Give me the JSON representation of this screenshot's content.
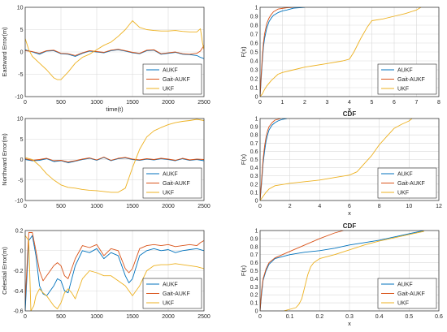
{
  "figure": {
    "colors": {
      "AUKF": "#0072BD",
      "Gait-AUKF": "#D95319",
      "UKF": "#EDB120",
      "grid": "#d9d9d9",
      "axis": "#262626"
    }
  },
  "chart_data": [
    {
      "type": "line",
      "title": "",
      "xlabel": "time(t)",
      "ylabel": "Eastward Error(m)",
      "xlim": [
        0,
        2500
      ],
      "ylim": [
        -10,
        10
      ],
      "xticks": [
        0,
        500,
        1000,
        1500,
        2000,
        2500
      ],
      "yticks": [
        -10,
        -5,
        0,
        5,
        10
      ],
      "grid": true,
      "legend": "bottom-right",
      "series": [
        {
          "name": "AUKF",
          "x": [
            0,
            100,
            200,
            300,
            400,
            500,
            600,
            700,
            800,
            900,
            1000,
            1100,
            1200,
            1300,
            1400,
            1500,
            1600,
            1700,
            1800,
            1900,
            2000,
            2100,
            2200,
            2300,
            2400,
            2450,
            2500
          ],
          "y": [
            0.5,
            0,
            -0.5,
            0.2,
            0.3,
            -0.4,
            -0.5,
            -1,
            -0.3,
            0.2,
            0,
            -0.2,
            0.3,
            0.5,
            0.2,
            -0.2,
            -0.4,
            0.3,
            0.4,
            -0.5,
            -0.3,
            -0.1,
            -0.5,
            -0.6,
            -0.8,
            -1.2,
            -1.5
          ]
        },
        {
          "name": "Gait-AUKF",
          "x": [
            0,
            100,
            200,
            300,
            400,
            500,
            600,
            700,
            800,
            900,
            1000,
            1100,
            1200,
            1300,
            1400,
            1500,
            1600,
            1700,
            1800,
            1900,
            2000,
            2100,
            2200,
            2300,
            2400,
            2450,
            2500
          ],
          "y": [
            0.3,
            0.1,
            -0.3,
            0.3,
            0.4,
            -0.3,
            -0.4,
            -0.8,
            -0.2,
            0.3,
            0.1,
            -0.1,
            0.4,
            0.6,
            0.3,
            -0.1,
            -0.3,
            0.4,
            0.5,
            -0.4,
            -0.2,
            0,
            -0.4,
            -0.5,
            -0.3,
            0.2,
            1.5
          ]
        },
        {
          "name": "UKF",
          "x": [
            0,
            50,
            100,
            200,
            300,
            400,
            450,
            500,
            600,
            700,
            800,
            900,
            1000,
            1100,
            1200,
            1300,
            1400,
            1500,
            1600,
            1700,
            1800,
            1900,
            2000,
            2100,
            2200,
            2300,
            2400,
            2450,
            2480,
            2500
          ],
          "y": [
            3,
            0.5,
            -1,
            -2.5,
            -4,
            -5.8,
            -6.2,
            -6.2,
            -4.5,
            -2.5,
            -1.2,
            -0.5,
            0.5,
            1.5,
            2.2,
            3.5,
            5,
            7,
            5.5,
            5,
            4.8,
            4.7,
            4.7,
            4.8,
            4.6,
            4.5,
            4.5,
            5.2,
            2,
            0.5
          ]
        }
      ]
    },
    {
      "type": "line",
      "title": "",
      "xlabel": "x",
      "ylabel": "F(x)",
      "xlim": [
        0,
        8
      ],
      "ylim": [
        0,
        1
      ],
      "xticks": [
        0,
        1,
        2,
        3,
        4,
        5,
        6,
        7,
        8
      ],
      "yticks": [
        0,
        0.1,
        0.2,
        0.3,
        0.4,
        0.5,
        0.6,
        0.7,
        0.8,
        0.9,
        1
      ],
      "grid": true,
      "legend": "bottom-right",
      "series": [
        {
          "name": "AUKF",
          "x": [
            0,
            0.05,
            0.1,
            0.15,
            0.2,
            0.3,
            0.4,
            0.5,
            0.6,
            0.8,
            1,
            1.2,
            1.5,
            2
          ],
          "y": [
            0,
            0.2,
            0.4,
            0.55,
            0.65,
            0.77,
            0.84,
            0.88,
            0.91,
            0.94,
            0.96,
            0.97,
            0.99,
            1
          ]
        },
        {
          "name": "Gait-AUKF",
          "x": [
            0,
            0.05,
            0.1,
            0.15,
            0.2,
            0.3,
            0.4,
            0.5,
            0.6,
            0.8,
            1.2,
            1.5
          ],
          "y": [
            0,
            0.25,
            0.45,
            0.6,
            0.7,
            0.82,
            0.88,
            0.92,
            0.95,
            0.98,
            0.995,
            1
          ]
        },
        {
          "name": "UKF",
          "x": [
            0,
            0.1,
            0.2,
            0.3,
            0.5,
            0.8,
            1,
            1.5,
            2,
            3,
            3.7,
            4,
            4.2,
            4.5,
            4.8,
            5,
            5.5,
            6,
            6.5,
            7,
            7.2
          ],
          "y": [
            0,
            0.03,
            0.08,
            0.12,
            0.18,
            0.25,
            0.27,
            0.3,
            0.33,
            0.37,
            0.4,
            0.42,
            0.5,
            0.65,
            0.78,
            0.85,
            0.87,
            0.9,
            0.93,
            0.97,
            1
          ]
        }
      ]
    },
    {
      "type": "line",
      "title": "",
      "xlabel": "",
      "ylabel": "Northward Error(m)",
      "xlim": [
        0,
        2500
      ],
      "ylim": [
        -10,
        10
      ],
      "xticks": [
        0,
        500,
        1000,
        1500,
        2000,
        2500
      ],
      "yticks": [
        -10,
        -5,
        0,
        5,
        10
      ],
      "grid": true,
      "legend": "bottom-right",
      "series": [
        {
          "name": "AUKF",
          "x": [
            0,
            100,
            200,
            300,
            400,
            500,
            600,
            700,
            800,
            900,
            1000,
            1100,
            1200,
            1300,
            1400,
            1500,
            1600,
            1700,
            1800,
            1900,
            2000,
            2100,
            2200,
            2300,
            2400,
            2500
          ],
          "y": [
            0,
            -0.3,
            -0.2,
            0.2,
            -0.5,
            -0.3,
            -0.8,
            -0.4,
            0,
            0.3,
            -0.2,
            0.5,
            -0.3,
            0.2,
            0.4,
            0,
            -0.2,
            0.1,
            -0.1,
            0.2,
            0,
            -0.3,
            0.2,
            -0.2,
            0,
            -0.3
          ]
        },
        {
          "name": "Gait-AUKF",
          "x": [
            0,
            100,
            200,
            300,
            400,
            500,
            600,
            700,
            800,
            900,
            1000,
            1100,
            1200,
            1300,
            1400,
            1500,
            1600,
            1700,
            1800,
            1900,
            2000,
            2100,
            2200,
            2300,
            2400,
            2500
          ],
          "y": [
            0.2,
            -0.2,
            0,
            0.3,
            -0.3,
            -0.2,
            -0.6,
            -0.3,
            0.1,
            0.4,
            -0.1,
            0.6,
            -0.2,
            0.3,
            0.5,
            0.1,
            -0.1,
            0.2,
            0,
            0.3,
            0.1,
            -0.2,
            0.3,
            -0.1,
            0.1,
            0
          ]
        },
        {
          "name": "UKF",
          "x": [
            0,
            100,
            200,
            300,
            400,
            500,
            600,
            700,
            800,
            900,
            1000,
            1100,
            1200,
            1300,
            1400,
            1500,
            1600,
            1700,
            1800,
            1900,
            2000,
            2100,
            2200,
            2300,
            2400,
            2500
          ],
          "y": [
            0.5,
            0,
            -1.5,
            -3.5,
            -5,
            -6.2,
            -6.8,
            -7,
            -7.3,
            -7.5,
            -7.6,
            -7.8,
            -8,
            -8,
            -7,
            -2,
            2.5,
            5.5,
            7,
            7.8,
            8.5,
            9,
            9.3,
            9.5,
            9.8,
            9.5
          ]
        }
      ]
    },
    {
      "type": "line",
      "title": "CDF",
      "xlabel": "x",
      "ylabel": "F(x)",
      "xlim": [
        0,
        12
      ],
      "ylim": [
        0,
        1
      ],
      "xticks": [
        0,
        2,
        4,
        6,
        8,
        10,
        12
      ],
      "yticks": [
        0,
        0.1,
        0.2,
        0.3,
        0.4,
        0.5,
        0.6,
        0.7,
        0.8,
        0.9,
        1
      ],
      "grid": true,
      "legend": "bottom-right",
      "series": [
        {
          "name": "AUKF",
          "x": [
            0,
            0.1,
            0.2,
            0.3,
            0.4,
            0.5,
            0.6,
            0.8,
            1,
            1.2,
            1.5,
            1.8
          ],
          "y": [
            0,
            0.2,
            0.45,
            0.6,
            0.72,
            0.8,
            0.86,
            0.92,
            0.95,
            0.97,
            0.99,
            1
          ]
        },
        {
          "name": "Gait-AUKF",
          "x": [
            0,
            0.1,
            0.2,
            0.3,
            0.4,
            0.5,
            0.6,
            0.8,
            1,
            1.2,
            1.4
          ],
          "y": [
            0,
            0.25,
            0.5,
            0.66,
            0.77,
            0.85,
            0.9,
            0.95,
            0.98,
            0.99,
            1
          ]
        },
        {
          "name": "UKF",
          "x": [
            0,
            0.2,
            0.4,
            0.6,
            1,
            2,
            3,
            4,
            5,
            6,
            6.5,
            7,
            7.5,
            8,
            8.5,
            9,
            9.5,
            10,
            10.2
          ],
          "y": [
            0,
            0.05,
            0.1,
            0.14,
            0.18,
            0.21,
            0.23,
            0.25,
            0.28,
            0.31,
            0.35,
            0.45,
            0.55,
            0.68,
            0.78,
            0.88,
            0.93,
            0.97,
            1
          ]
        }
      ]
    },
    {
      "type": "line",
      "title": "",
      "xlabel": "",
      "ylabel": "Celestial Error(m)",
      "xlim": [
        0,
        2500
      ],
      "ylim": [
        -0.6,
        0.2
      ],
      "xticks": [
        0,
        500,
        1000,
        1500,
        2000,
        2500
      ],
      "yticks": [
        -0.6,
        -0.4,
        -0.2,
        0,
        0.2
      ],
      "grid": true,
      "legend": "bottom-right",
      "series": [
        {
          "name": "AUKF",
          "x": [
            0,
            50,
            100,
            150,
            200,
            250,
            300,
            400,
            450,
            500,
            550,
            600,
            700,
            800,
            900,
            1000,
            1100,
            1200,
            1300,
            1400,
            1450,
            1500,
            1600,
            1700,
            1800,
            1900,
            2000,
            2100,
            2200,
            2300,
            2400,
            2500
          ],
          "y": [
            -0.6,
            0.1,
            0.15,
            -0.05,
            -0.35,
            -0.43,
            -0.45,
            -0.35,
            -0.28,
            -0.3,
            -0.4,
            -0.42,
            -0.15,
            0,
            -0.02,
            0.02,
            -0.08,
            -0.02,
            -0.05,
            -0.25,
            -0.32,
            -0.28,
            -0.05,
            0,
            0.02,
            0,
            0.01,
            -0.02,
            0,
            0.01,
            0.02,
            0
          ]
        },
        {
          "name": "Gait-AUKF",
          "x": [
            0,
            50,
            100,
            150,
            200,
            250,
            300,
            400,
            450,
            500,
            550,
            600,
            700,
            800,
            900,
            1000,
            1100,
            1200,
            1300,
            1400,
            1450,
            1500,
            1600,
            1700,
            1800,
            1900,
            2000,
            2100,
            2200,
            2300,
            2400,
            2450,
            2500
          ],
          "y": [
            -0.5,
            0.18,
            0.18,
            0,
            -0.2,
            -0.3,
            -0.25,
            -0.15,
            -0.12,
            -0.15,
            -0.25,
            -0.28,
            -0.08,
            0.05,
            0.03,
            0.06,
            -0.05,
            0.02,
            0,
            -0.18,
            -0.22,
            -0.18,
            0.02,
            0.05,
            0.06,
            0.05,
            0.06,
            0.04,
            0.05,
            0.06,
            0.05,
            0.08,
            0.1
          ]
        },
        {
          "name": "UKF",
          "x": [
            0,
            50,
            80,
            120,
            150,
            200,
            250,
            300,
            350,
            400,
            450,
            500,
            550,
            600,
            650,
            700,
            800,
            900,
            1000,
            1100,
            1200,
            1300,
            1400,
            1500,
            1600,
            1700,
            1800,
            1900,
            2000,
            2100,
            2200,
            2300,
            2400,
            2500
          ],
          "y": [
            0.15,
            0.1,
            -0.6,
            -0.55,
            -0.45,
            -0.38,
            -0.42,
            -0.45,
            -0.5,
            -0.55,
            -0.58,
            -0.52,
            -0.42,
            -0.38,
            -0.42,
            -0.48,
            -0.28,
            -0.2,
            -0.22,
            -0.25,
            -0.25,
            -0.3,
            -0.35,
            -0.45,
            -0.35,
            -0.2,
            -0.15,
            -0.14,
            -0.14,
            -0.13,
            -0.14,
            -0.15,
            -0.16,
            -0.18
          ]
        }
      ]
    },
    {
      "type": "line",
      "title": "CDF",
      "xlabel": "x",
      "ylabel": "F(x)",
      "xlim": [
        0,
        0.6
      ],
      "ylim": [
        0,
        1
      ],
      "xticks": [
        0,
        0.1,
        0.2,
        0.3,
        0.4,
        0.5,
        0.6
      ],
      "yticks": [
        0,
        0.1,
        0.2,
        0.3,
        0.4,
        0.5,
        0.6,
        0.7,
        0.8,
        0.9,
        1
      ],
      "grid": true,
      "legend": "bottom-right",
      "series": [
        {
          "name": "AUKF",
          "x": [
            0,
            0.005,
            0.01,
            0.02,
            0.03,
            0.05,
            0.1,
            0.15,
            0.2,
            0.25,
            0.3,
            0.35,
            0.4,
            0.45,
            0.5,
            0.55
          ],
          "y": [
            0,
            0.2,
            0.38,
            0.5,
            0.58,
            0.65,
            0.7,
            0.73,
            0.75,
            0.78,
            0.82,
            0.85,
            0.88,
            0.92,
            0.96,
            1
          ]
        },
        {
          "name": "Gait-AUKF",
          "x": [
            0,
            0.005,
            0.01,
            0.02,
            0.03,
            0.05,
            0.1,
            0.15,
            0.2,
            0.25,
            0.28
          ],
          "y": [
            0,
            0.25,
            0.4,
            0.52,
            0.6,
            0.66,
            0.74,
            0.82,
            0.9,
            0.97,
            1
          ]
        },
        {
          "name": "UKF",
          "x": [
            0.08,
            0.1,
            0.12,
            0.13,
            0.14,
            0.15,
            0.16,
            0.17,
            0.18,
            0.2,
            0.25,
            0.3,
            0.35,
            0.4,
            0.45,
            0.5,
            0.55
          ],
          "y": [
            0,
            0.02,
            0.04,
            0.08,
            0.15,
            0.3,
            0.45,
            0.55,
            0.6,
            0.65,
            0.7,
            0.76,
            0.82,
            0.87,
            0.91,
            0.95,
            0.99
          ]
        }
      ]
    }
  ]
}
